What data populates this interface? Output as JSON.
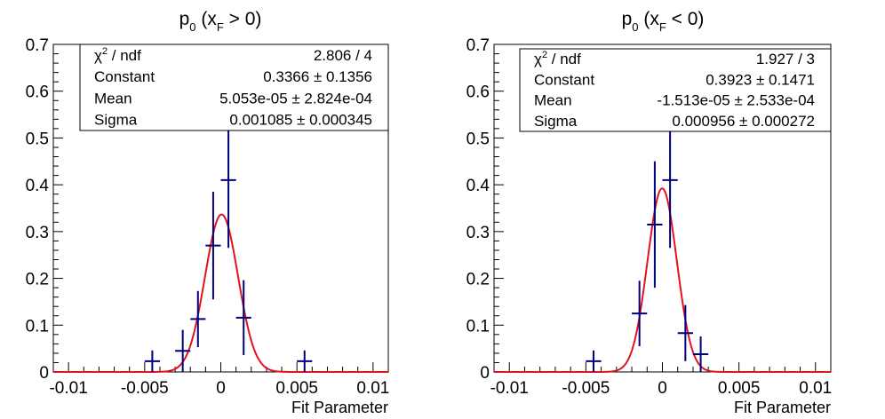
{
  "chart_data": [
    {
      "type": "scatter",
      "title_main": "p",
      "title_sub": "0",
      "title_open": " (x",
      "title_var_sub": "F",
      "title_cond": " > 0)",
      "xlabel": "Fit Parameter",
      "xlim": [
        -0.011,
        0.011
      ],
      "ylim": [
        0,
        0.7
      ],
      "xticks": [
        -0.01,
        -0.005,
        0,
        0.005,
        0.01
      ],
      "xtick_labels": [
        "-0.01",
        "-0.005",
        "0",
        "0.005",
        "0.01"
      ],
      "yticks": [
        0,
        0.1,
        0.2,
        0.3,
        0.4,
        0.5,
        0.6,
        0.7
      ],
      "ytick_labels": [
        "0",
        "0.1",
        "0.2",
        "0.3",
        "0.4",
        "0.5",
        "0.6",
        "0.7"
      ],
      "bin_width": 0.001,
      "points": [
        {
          "x": -0.0045,
          "y": 0.023,
          "err": 0.023
        },
        {
          "x": -0.0025,
          "y": 0.045,
          "err": 0.045
        },
        {
          "x": -0.0015,
          "y": 0.113,
          "err": 0.06
        },
        {
          "x": -0.0005,
          "y": 0.27,
          "err": 0.115
        },
        {
          "x": 0.0005,
          "y": 0.41,
          "err": 0.145
        },
        {
          "x": 0.0015,
          "y": 0.116,
          "err": 0.08
        },
        {
          "x": 0.0055,
          "y": 0.023,
          "err": 0.023
        }
      ],
      "fit": {
        "type": "gaussian",
        "constant": 0.3366,
        "mean": 5.053e-05,
        "sigma": 0.001085
      },
      "stats": [
        {
          "label_main": "χ",
          "label_sup": "2",
          "label_rest": " / ndf",
          "value": "2.806 / 4"
        },
        {
          "label_main": "Constant",
          "value": "0.3366 ± 0.1356"
        },
        {
          "label_main": "Mean",
          "value": "5.053e-05 ± 2.824e-04"
        },
        {
          "label_main": "Sigma",
          "value": "0.001085 ± 0.000345"
        }
      ],
      "colors": {
        "points": "#00007f",
        "fit": "#e0141e",
        "frame": "#000000"
      }
    },
    {
      "type": "scatter",
      "title_main": "p",
      "title_sub": "0",
      "title_open": " (x",
      "title_var_sub": "F",
      "title_cond": " < 0)",
      "xlabel": "Fit Parameter",
      "xlim": [
        -0.011,
        0.011
      ],
      "ylim": [
        0,
        0.7
      ],
      "xticks": [
        -0.01,
        -0.005,
        0,
        0.005,
        0.01
      ],
      "xtick_labels": [
        "-0.01",
        "-0.005",
        "0",
        "0.005",
        "0.01"
      ],
      "yticks": [
        0,
        0.1,
        0.2,
        0.3,
        0.4,
        0.5,
        0.6,
        0.7
      ],
      "ytick_labels": [
        "0",
        "0.1",
        "0.2",
        "0.3",
        "0.4",
        "0.5",
        "0.6",
        "0.7"
      ],
      "bin_width": 0.001,
      "points": [
        {
          "x": -0.0045,
          "y": 0.023,
          "err": 0.023
        },
        {
          "x": -0.0015,
          "y": 0.125,
          "err": 0.07
        },
        {
          "x": -0.0005,
          "y": 0.315,
          "err": 0.135
        },
        {
          "x": 0.0005,
          "y": 0.41,
          "err": 0.145
        },
        {
          "x": 0.0015,
          "y": 0.083,
          "err": 0.06
        },
        {
          "x": 0.0025,
          "y": 0.038,
          "err": 0.038
        }
      ],
      "fit": {
        "type": "gaussian",
        "constant": 0.3923,
        "mean": -1.513e-05,
        "sigma": 0.000956
      },
      "stats": [
        {
          "label_main": "χ",
          "label_sup": "2",
          "label_rest": " / ndf",
          "value": "1.927 / 3"
        },
        {
          "label_main": "Constant",
          "value": "0.3923 ± 0.1471"
        },
        {
          "label_main": "Mean",
          "value": "-1.513e-05 ± 2.533e-04"
        },
        {
          "label_main": "Sigma",
          "value": "0.000956 ± 0.000272"
        }
      ],
      "colors": {
        "points": "#00007f",
        "fit": "#e0141e",
        "frame": "#000000"
      }
    }
  ]
}
